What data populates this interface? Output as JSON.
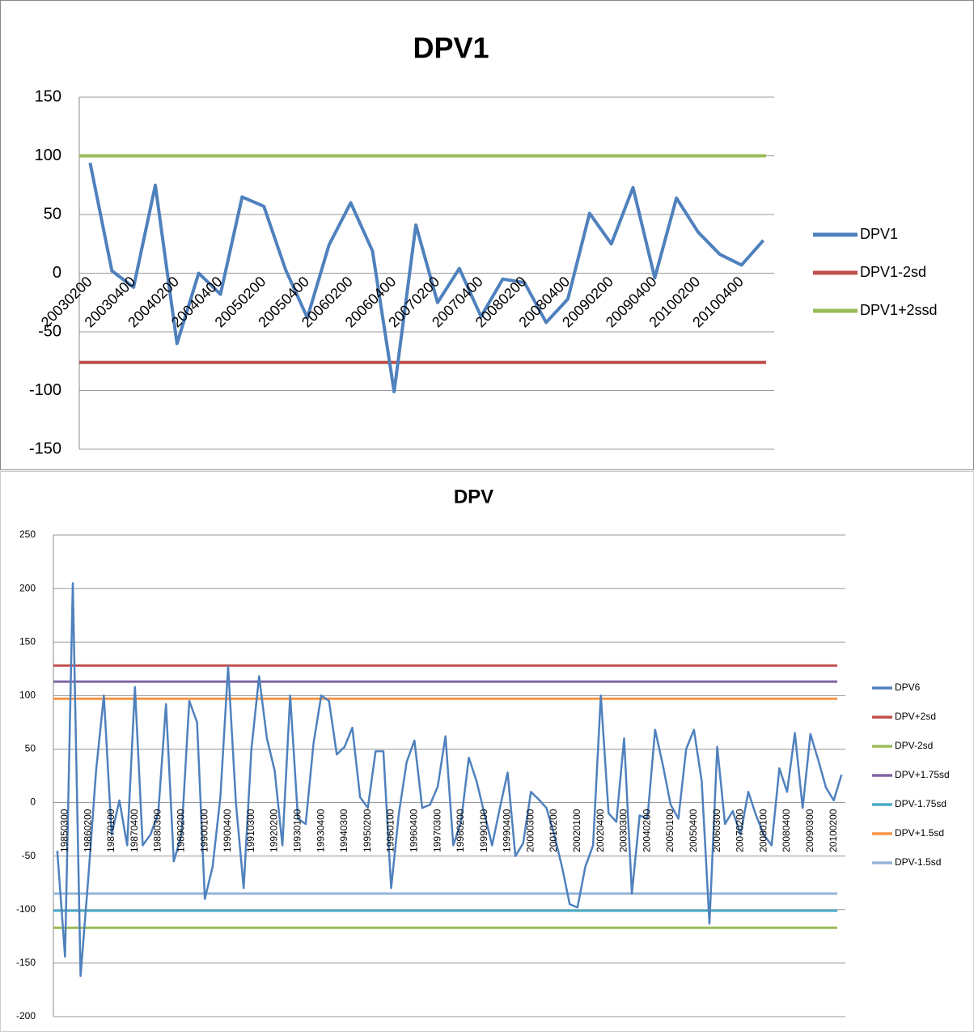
{
  "chart_data": [
    {
      "type": "line",
      "title": "DPV1",
      "categories": [
        "20030200",
        null,
        "20030400",
        null,
        "20040200",
        null,
        "20040400",
        null,
        "20050200",
        null,
        "20050400",
        null,
        "20060200",
        null,
        "20060400",
        null,
        "20070200",
        null,
        "20070400",
        null,
        "20080200",
        null,
        "20080400",
        null,
        "20090200",
        null,
        "20090400",
        null,
        "20100200",
        null,
        "20100400",
        null
      ],
      "series": [
        {
          "name": "DPV1",
          "color": "#4f81bd",
          "values": [
            94,
            2,
            -12,
            75,
            -60,
            0,
            -18,
            65,
            57,
            3,
            -38,
            24,
            60,
            19,
            -101,
            41,
            -25,
            4,
            -37,
            -5,
            -8,
            -42,
            -22,
            51,
            25,
            73,
            -4,
            64,
            35,
            16,
            7,
            28
          ]
        },
        {
          "name": "DPV1-2sd",
          "color": "#c0504d",
          "value": -76
        },
        {
          "name": "DPV1+2ssd",
          "color": "#9bbb59",
          "value": 100
        }
      ],
      "ylim": [
        -150,
        150
      ],
      "yticks": [
        -150,
        -100,
        -50,
        0,
        50,
        100,
        150
      ],
      "grid": true
    },
    {
      "type": "line",
      "title": "DPV",
      "categories": [
        null,
        "19850300",
        null,
        null,
        "19860200",
        null,
        null,
        "19870100",
        null,
        null,
        "19870400",
        null,
        null,
        "19880300",
        null,
        null,
        "19890200",
        null,
        null,
        "19900100",
        null,
        null,
        "19900400",
        null,
        null,
        "19910300",
        null,
        null,
        "19920200",
        null,
        null,
        "19930100",
        null,
        null,
        "19930400",
        null,
        null,
        "19940300",
        null,
        null,
        "19950200",
        null,
        null,
        "19960100",
        null,
        null,
        "19960400",
        null,
        null,
        "19970300",
        null,
        null,
        "19980200",
        null,
        null,
        "19990100",
        null,
        null,
        "19990400",
        null,
        null,
        "20000300",
        null,
        null,
        "20010200",
        null,
        null,
        "20020100",
        null,
        null,
        "20020400",
        null,
        null,
        "20030300",
        null,
        null,
        "20040200",
        null,
        null,
        "20050100",
        null,
        null,
        "20050400",
        null,
        null,
        "20060300",
        null,
        null,
        "20070200",
        null,
        null,
        "20080100",
        null,
        null,
        "20080400",
        null,
        null,
        "20090300",
        null,
        null,
        "20100200",
        null
      ],
      "series": [
        {
          "name": "DPV6",
          "color": "#4f81bd",
          "values": [
            -45,
            -144,
            205,
            -162,
            -70,
            30,
            100,
            -30,
            2,
            -40,
            108,
            -40,
            -30,
            -10,
            92,
            -55,
            -30,
            95,
            75,
            -90,
            -60,
            5,
            127,
            0,
            -80,
            50,
            118,
            60,
            30,
            -40,
            100,
            -15,
            -20,
            55,
            100,
            95,
            45,
            52,
            70,
            5,
            -5,
            48,
            48,
            -80,
            -10,
            38,
            58,
            -5,
            -2,
            15,
            62,
            -40,
            -18,
            42,
            20,
            -10,
            -40,
            -5,
            28,
            -50,
            -38,
            10,
            3,
            -5,
            -30,
            -60,
            -95,
            -98,
            -60,
            -40,
            100,
            -10,
            -18,
            60,
            -85,
            -12,
            -15,
            68,
            35,
            -2,
            -15,
            50,
            68,
            20,
            -113,
            52,
            -20,
            -8,
            -30,
            10,
            -12,
            -30,
            -40,
            32,
            10,
            65,
            -5,
            64,
            40,
            14,
            2,
            26
          ]
        },
        {
          "name": "DPV+2sd",
          "color": "#c0504d",
          "value": 128
        },
        {
          "name": "DPV-2sd",
          "color": "#9bbb59",
          "value": -117
        },
        {
          "name": "DPV+1.75sd",
          "color": "#8064a2",
          "value": 113
        },
        {
          "name": "DPV-1.75sd",
          "color": "#4bacc6",
          "value": -101
        },
        {
          "name": "DPV+1.5sd",
          "color": "#f79646",
          "value": 97
        },
        {
          "name": "DPV-1.5sd",
          "color": "#95b3d7",
          "value": -85
        }
      ],
      "ylim": [
        -200,
        250
      ],
      "yticks": [
        -200,
        -150,
        -100,
        -50,
        0,
        50,
        100,
        150,
        200,
        250
      ],
      "grid": true
    }
  ]
}
